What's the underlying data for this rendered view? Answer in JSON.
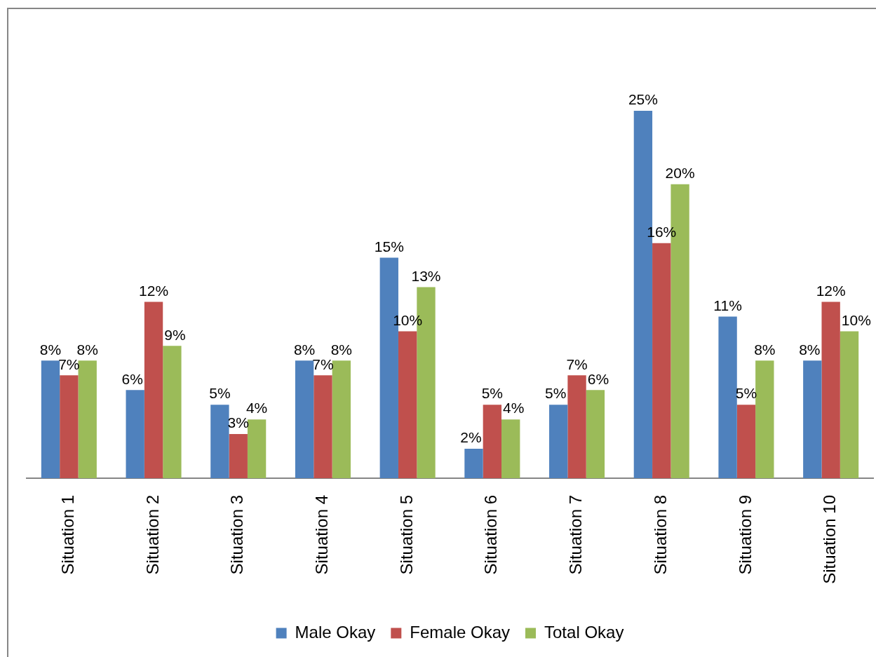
{
  "chart_data": {
    "type": "bar",
    "categories": [
      "Situation 1",
      "Situation 2",
      "Situation 3",
      "Situation 4",
      "Situation 5",
      "Situation 6",
      "Situation 7",
      "Situation 8",
      "Situation 9",
      "Situation 10"
    ],
    "series": [
      {
        "name": "Male Okay",
        "color": "#4f81bd",
        "values": [
          8,
          6,
          5,
          8,
          15,
          2,
          5,
          25,
          11,
          8
        ],
        "value_labels": [
          "8%",
          "6%",
          "5%",
          "8%",
          "15%",
          "2%",
          "5%",
          "25%",
          "11%",
          "8%"
        ]
      },
      {
        "name": "Female Okay",
        "color": "#c0504d",
        "values": [
          7,
          12,
          3,
          7,
          10,
          5,
          7,
          16,
          5,
          12
        ],
        "value_labels": [
          "7%",
          "12%",
          "3%",
          "7%",
          "10%",
          "5%",
          "7%",
          "16%",
          "5%",
          "12%"
        ]
      },
      {
        "name": "Total Okay",
        "color": "#9bbb59",
        "values": [
          8,
          9,
          4,
          8,
          13,
          4,
          6,
          20,
          8,
          10
        ],
        "value_labels": [
          "8%",
          "9%",
          "4%",
          "8%",
          "13%",
          "4%",
          "6%",
          "20%",
          "8%",
          "10%"
        ]
      }
    ],
    "legend": "bottom"
  }
}
